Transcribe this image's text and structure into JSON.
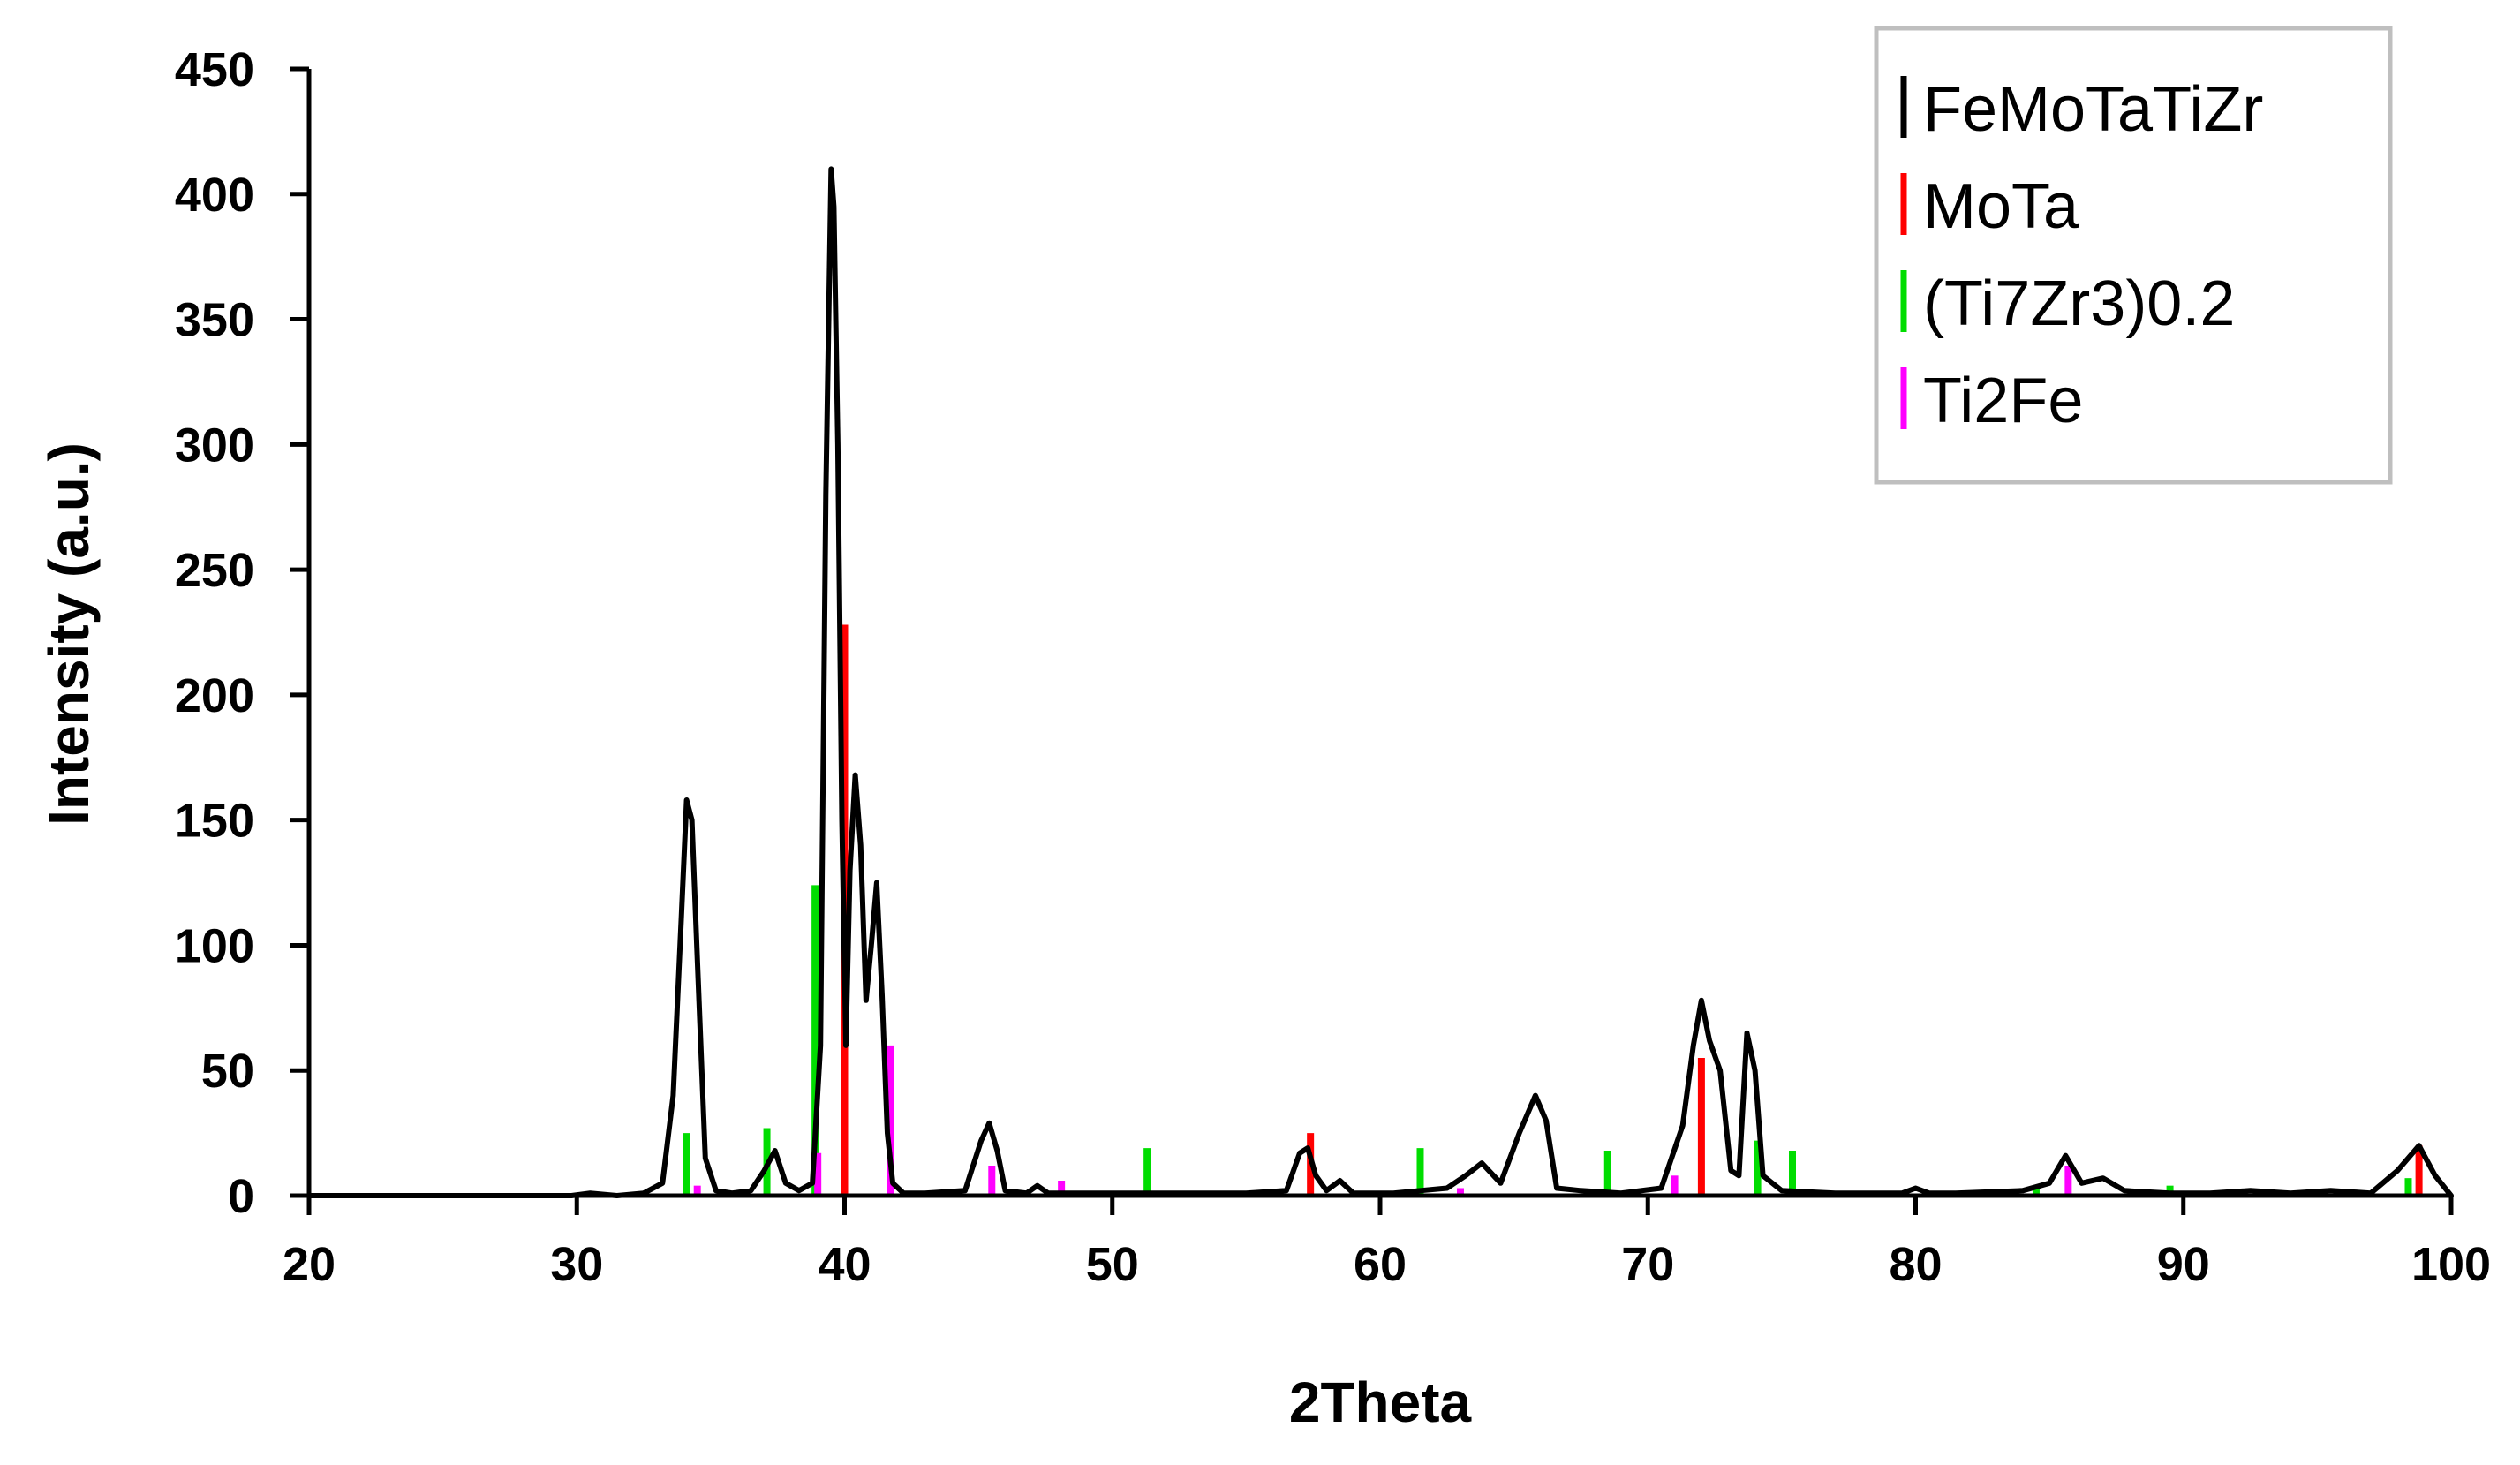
{
  "chart_data": {
    "type": "line",
    "title": "",
    "xlabel": "2Theta",
    "ylabel": "Intensity (a.u.)",
    "xlim": [
      20,
      100
    ],
    "ylim": [
      0,
      450
    ],
    "xticks": [
      20,
      30,
      40,
      50,
      60,
      70,
      80,
      90,
      100
    ],
    "yticks": [
      0,
      50,
      100,
      150,
      200,
      250,
      300,
      350,
      400,
      450
    ],
    "grid": false,
    "legend_position": "top-right",
    "legend_items": [
      {
        "label": "FeMoTaTiZr",
        "color": "#000000"
      },
      {
        "label": "MoTa",
        "color": "#ff0000"
      },
      {
        "label": "(Ti7Zr3)0.2",
        "color": "#00dd00"
      },
      {
        "label": "Ti2Fe",
        "color": "#ff00ff"
      }
    ],
    "pattern": {
      "name": "FeMoTaTiZr",
      "color": "#000000",
      "x": [
        20,
        29.8,
        30.5,
        31.5,
        32.5,
        33.2,
        33.6,
        33.9,
        34.1,
        34.3,
        34.5,
        34.8,
        35.2,
        35.8,
        36.5,
        37.0,
        37.4,
        37.8,
        38.3,
        38.8,
        39.1,
        39.3,
        39.5,
        39.6,
        39.75,
        39.9,
        40.05,
        40.2,
        40.4,
        40.6,
        40.8,
        41.0,
        41.2,
        41.4,
        41.6,
        41.8,
        42.2,
        43.0,
        44.5,
        45.1,
        45.4,
        45.7,
        46.0,
        46.8,
        47.2,
        47.6,
        48.5,
        50.0,
        52.0,
        55.0,
        56.5,
        57.0,
        57.3,
        57.6,
        58.0,
        58.5,
        59.0,
        60.5,
        61.5,
        62.5,
        63.2,
        63.8,
        64.5,
        65.2,
        65.8,
        66.2,
        66.6,
        67.5,
        69.0,
        70.5,
        71.3,
        71.7,
        72.0,
        72.3,
        72.7,
        73.1,
        73.4,
        73.7,
        74.0,
        74.3,
        75.0,
        77.0,
        79.5,
        80.0,
        80.5,
        81.5,
        84.0,
        85.0,
        85.6,
        86.2,
        87.0,
        87.8,
        89.5,
        91.0,
        92.5,
        94.0,
        95.5,
        97.0,
        98.0,
        98.8,
        99.4,
        100.0
      ],
      "y": [
        0,
        0,
        1,
        0,
        1,
        5,
        40,
        110,
        158,
        150,
        95,
        15,
        2,
        1,
        2,
        10,
        18,
        5,
        2,
        5,
        60,
        280,
        410,
        395,
        300,
        150,
        60,
        130,
        168,
        140,
        78,
        100,
        125,
        80,
        25,
        5,
        1,
        1,
        2,
        22,
        29,
        18,
        2,
        1,
        4,
        1,
        1,
        1,
        1,
        1,
        2,
        17,
        19,
        8,
        2,
        6,
        1,
        1,
        2,
        3,
        8,
        13,
        5,
        25,
        40,
        30,
        3,
        2,
        1,
        3,
        28,
        60,
        78,
        62,
        50,
        10,
        8,
        65,
        50,
        8,
        2,
        1,
        1,
        3,
        1,
        1,
        2,
        5,
        16,
        5,
        7,
        2,
        1,
        1,
        2,
        1,
        2,
        1,
        10,
        20,
        8,
        0
      ]
    },
    "reference_lines": [
      {
        "name": "MoTa",
        "color": "#ff0000",
        "positions": [
          40.0,
          57.4,
          72.0,
          98.8
        ],
        "intensities": [
          228,
          25,
          55,
          20
        ]
      },
      {
        "name": "(Ti7Zr3)0.2",
        "color": "#00dd00",
        "positions": [
          34.1,
          37.1,
          38.9,
          51.3,
          61.5,
          68.5,
          74.1,
          75.4,
          84.5,
          89.5,
          98.4
        ],
        "intensities": [
          25,
          27,
          124,
          19,
          19,
          18,
          22,
          18,
          3,
          4,
          7
        ]
      },
      {
        "name": "Ti2Fe",
        "color": "#ff00ff",
        "positions": [
          34.5,
          39.0,
          41.7,
          45.5,
          48.1,
          63.0,
          71.0,
          85.7
        ],
        "intensities": [
          4,
          17,
          60,
          12,
          6,
          3,
          8,
          12
        ]
      }
    ]
  }
}
